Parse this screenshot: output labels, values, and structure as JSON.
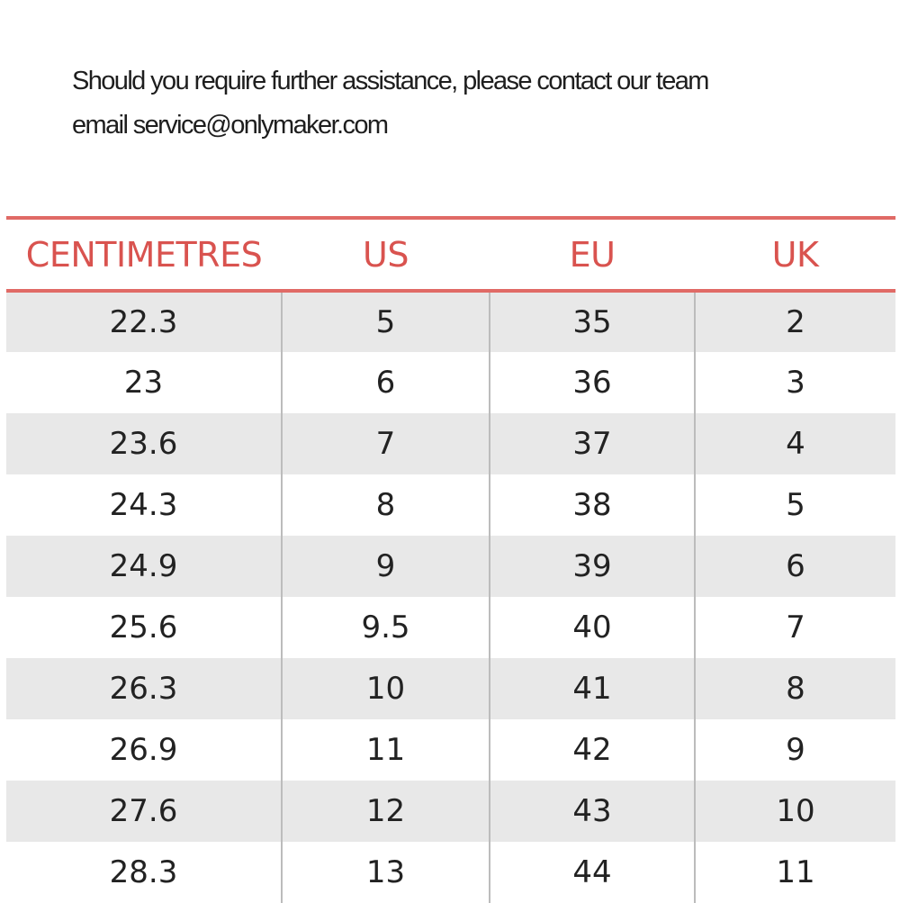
{
  "notice": {
    "line1": "Should you require further assistance, please contact our team",
    "line2": "email service@onlymaker.com"
  },
  "table": {
    "headers": [
      "CENTIMETRES",
      "US",
      "EU",
      "UK"
    ],
    "rows": [
      [
        "22.3",
        "5",
        "35",
        "2"
      ],
      [
        "23",
        "6",
        "36",
        "3"
      ],
      [
        "23.6",
        "7",
        "37",
        "4"
      ],
      [
        "24.3",
        "8",
        "38",
        "5"
      ],
      [
        "24.9",
        "9",
        "39",
        "6"
      ],
      [
        "25.6",
        "9.5",
        "40",
        "7"
      ],
      [
        "26.3",
        "10",
        "41",
        "8"
      ],
      [
        "26.9",
        "11",
        "42",
        "9"
      ],
      [
        "27.6",
        "12",
        "43",
        "10"
      ],
      [
        "28.3",
        "13",
        "44",
        "11"
      ]
    ]
  },
  "colors": {
    "header_text": "#d9534f",
    "header_rule": "#e06a66",
    "striped_row": "#e8e8e8"
  }
}
